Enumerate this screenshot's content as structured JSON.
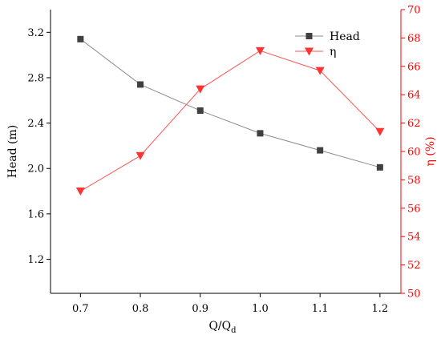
{
  "chart_data": {
    "type": "line",
    "x": [
      0.7,
      0.8,
      0.9,
      1.0,
      1.1,
      1.2
    ],
    "x_tick_labels": [
      "0.7",
      "0.8",
      "0.9",
      "1.0",
      "1.1",
      "1.2"
    ],
    "xlim": [
      0.65,
      1.235
    ],
    "xlabel_main": "Q/Q",
    "xlabel_sub": "d",
    "left_axis": {
      "label": "Head (m)",
      "ylim": [
        0.9,
        3.4
      ],
      "ticks": [
        1.2,
        1.6,
        2.0,
        2.4,
        2.8,
        3.2
      ],
      "tick_labels": [
        "1.2",
        "1.6",
        "2.0",
        "2.4",
        "2.8",
        "3.2"
      ],
      "color": "#000000"
    },
    "right_axis": {
      "label": "η (%)",
      "ylim": [
        50,
        70
      ],
      "ticks": [
        50,
        52,
        54,
        56,
        58,
        60,
        62,
        64,
        66,
        68,
        70
      ],
      "tick_labels": [
        "50",
        "52",
        "54",
        "56",
        "58",
        "60",
        "62",
        "64",
        "66",
        "68",
        "70"
      ],
      "color": "#ff0000"
    },
    "series": [
      {
        "name": "Head",
        "axis": "left",
        "marker": "square",
        "color": "#404040",
        "line_color": "#8c8c8c",
        "values": [
          3.14,
          2.74,
          2.51,
          2.31,
          2.16,
          2.01
        ]
      },
      {
        "name": "η",
        "axis": "right",
        "marker": "triangle-down",
        "color": "#ff3333",
        "line_color": "#ff5555",
        "values": [
          57.2,
          59.7,
          64.4,
          67.1,
          65.7,
          61.4
        ]
      }
    ],
    "legend_position": "top-right",
    "grid": false
  }
}
